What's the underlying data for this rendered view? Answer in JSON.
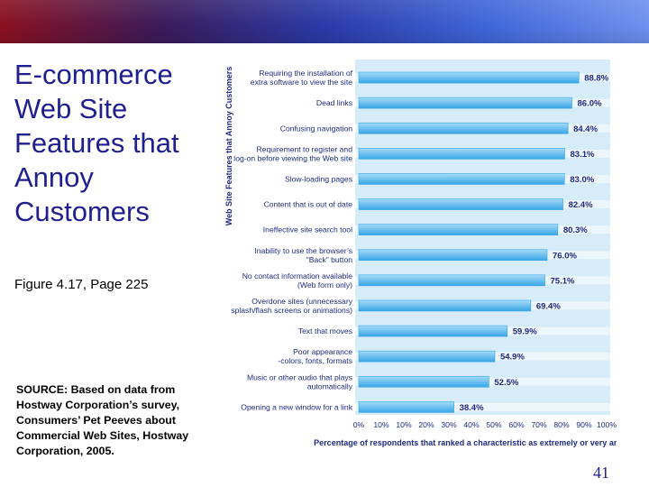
{
  "slide": {
    "title": "E-commerce\nWeb Site\nFeatures that\nAnnoy\nCustomers",
    "figure_ref": "Figure 4.17, Page 225",
    "source": "SOURCE: Based on data from Hostway Corporation’s survey, Consumers’ Pet Peeves about Commercial Web Sites, Hostway Corporation, 2005.",
    "page_number": "41"
  },
  "colors": {
    "title": "#1f1f8f",
    "bar": "#39a6e6",
    "bar_light": "#a6dcf8",
    "plot_background": "#d6ecf8",
    "text": "#1f2a80"
  },
  "chart_data": {
    "type": "bar",
    "orientation": "horizontal",
    "title": "",
    "xlabel": "Percentage of respondents that ranked a characteristic as extremely or very annoying",
    "ylabel": "Web Site Features that Annoy Customers",
    "xlim": [
      0,
      100
    ],
    "x_ticks": [
      "0%",
      "10%",
      "10%",
      "20%",
      "30%",
      "40%",
      "50%",
      "60%",
      "70%",
      "80%",
      "90%",
      "100%"
    ],
    "grid": false,
    "categories": [
      [
        "Requiring the installation of",
        "extra software to view the site"
      ],
      [
        "Dead links"
      ],
      [
        "Confusing navigation"
      ],
      [
        "Requirement to register and",
        "log-on before viewing the Web site"
      ],
      [
        "Slow-loading pages"
      ],
      [
        "Content that is out of date"
      ],
      [
        "Ineffective site search tool"
      ],
      [
        "Inability to use the browser’s",
        "“Back” button"
      ],
      [
        "No contact information available",
        "(Web form only)"
      ],
      [
        "Overdone sites (unnecessary",
        "splash/flash screens or animations)"
      ],
      [
        "Text that moves"
      ],
      [
        "Poor appearance",
        "-colors, fonts, formats"
      ],
      [
        "Music or other audio that plays",
        "automatically"
      ],
      [
        "Opening a new window for a link"
      ]
    ],
    "values": [
      88.8,
      86.0,
      84.4,
      83.1,
      83.0,
      82.4,
      80.3,
      76.0,
      75.1,
      69.4,
      59.9,
      54.9,
      52.5,
      38.4
    ],
    "value_labels": [
      "88.8%",
      "86.0%",
      "84.4%",
      "83.1%",
      "83.0%",
      "82.4%",
      "80.3%",
      "76.0%",
      "75.1%",
      "69.4%",
      "59.9%",
      "54.9%",
      "52.5%",
      "38.4%"
    ]
  }
}
